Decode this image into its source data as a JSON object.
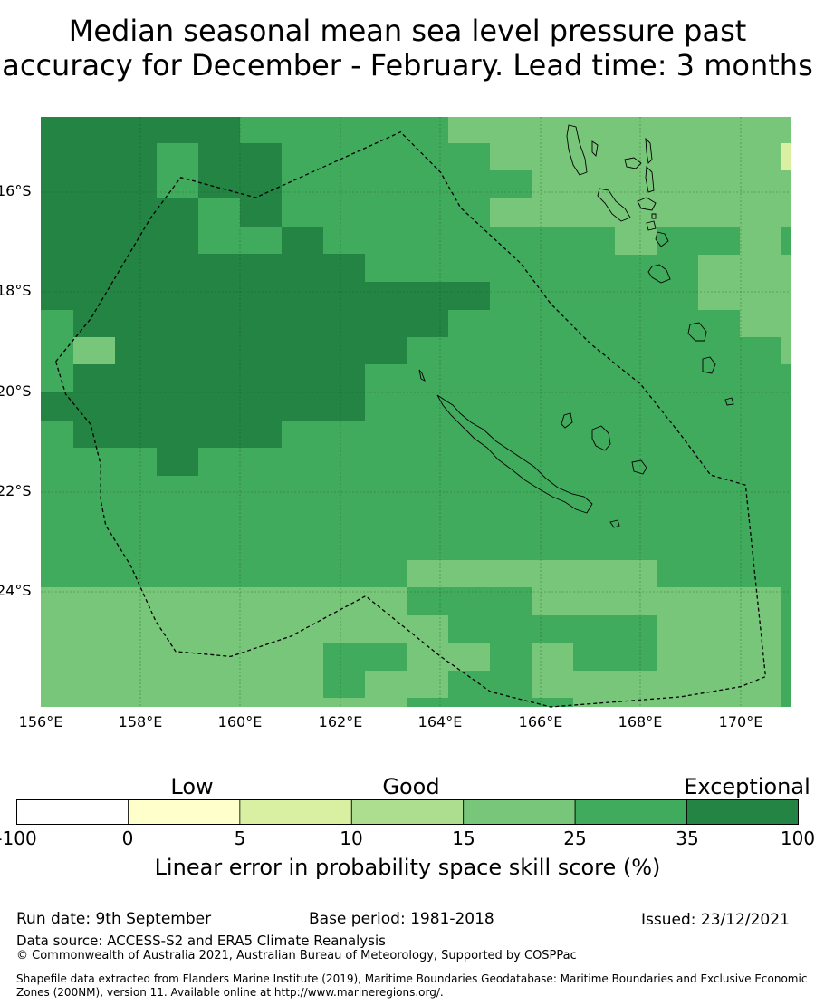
{
  "title": {
    "line1": "Median seasonal mean sea level pressure past",
    "line2": "accuracy for December - February. Lead time: 3 months"
  },
  "map": {
    "lon_range": [
      156,
      171
    ],
    "lat_range": [
      -26.2,
      -14.5
    ],
    "lat_ticks": [
      "16°S",
      "18°S",
      "20°S",
      "22°S",
      "24°S"
    ],
    "lon_ticks": [
      "156°E",
      "158°E",
      "160°E",
      "162°E",
      "164°E",
      "166°E",
      "168°E",
      "170°E"
    ],
    "gridlines": true,
    "eez_boundary": [
      [
        156.3,
        -19.35
      ],
      [
        157.0,
        -18.5
      ],
      [
        158.2,
        -16.5
      ],
      [
        158.8,
        -15.7
      ],
      [
        160.3,
        -16.1
      ],
      [
        163.2,
        -14.8
      ],
      [
        164.0,
        -15.6
      ],
      [
        164.4,
        -16.3
      ],
      [
        165.6,
        -17.4
      ],
      [
        166.2,
        -18.2
      ],
      [
        167.0,
        -19.0
      ],
      [
        168.0,
        -19.8
      ],
      [
        168.8,
        -20.8
      ],
      [
        169.4,
        -21.6
      ],
      [
        170.1,
        -21.8
      ],
      [
        170.5,
        -25.6
      ],
      [
        170.0,
        -25.8
      ],
      [
        168.8,
        -26.0
      ],
      [
        166.2,
        -26.2
      ],
      [
        165.0,
        -25.9
      ],
      [
        164.0,
        -25.2
      ],
      [
        162.5,
        -24.0
      ],
      [
        161.0,
        -24.8
      ],
      [
        159.8,
        -25.2
      ],
      [
        158.7,
        -25.1
      ],
      [
        158.3,
        -24.5
      ],
      [
        157.8,
        -23.4
      ],
      [
        157.3,
        -22.6
      ],
      [
        157.2,
        -22.1
      ],
      [
        157.2,
        -21.4
      ],
      [
        157.0,
        -20.6
      ],
      [
        156.5,
        -20.0
      ],
      [
        156.3,
        -19.35
      ]
    ],
    "legend_classes": [
      {
        "range": [
          -100,
          0
        ],
        "color": "#ffffff"
      },
      {
        "range": [
          0,
          5
        ],
        "color": "#ffffcc"
      },
      {
        "range": [
          5,
          10
        ],
        "color": "#d9f0a3"
      },
      {
        "range": [
          10,
          15
        ],
        "color": "#addd8e"
      },
      {
        "range": [
          15,
          25
        ],
        "color": "#78c679"
      },
      {
        "range": [
          25,
          35
        ],
        "color": "#41ab5d"
      },
      {
        "range": [
          35,
          100
        ],
        "color": "#238443"
      }
    ]
  },
  "colorbar": {
    "categories": [
      "Low",
      "Good",
      "Exceptional"
    ],
    "ticks": [
      "-100",
      "0",
      "5",
      "10",
      "15",
      "25",
      "35",
      "100"
    ],
    "title": "Linear error in probability space skill score (%)"
  },
  "footer": {
    "run_date": "Run date: 9th September",
    "base_period": "Base period: 1981-2018",
    "issued": "Issued: 23/12/2021",
    "data_source": "Data source: ACCESS-S2 and ERA5 Climate Reanalysis",
    "copyright": "© Commonwealth of Australia 2021, Australian Bureau of Meteorology, Supported by COSPPac",
    "shapefile": "Shapefile data extracted from Flanders Marine Institute (2019), Maritime Boundaries Geodatabase: Maritime Boundaries and Exclusive Economic Zones (200NM), version 11. Available online at http://www.marineregions.org/."
  }
}
